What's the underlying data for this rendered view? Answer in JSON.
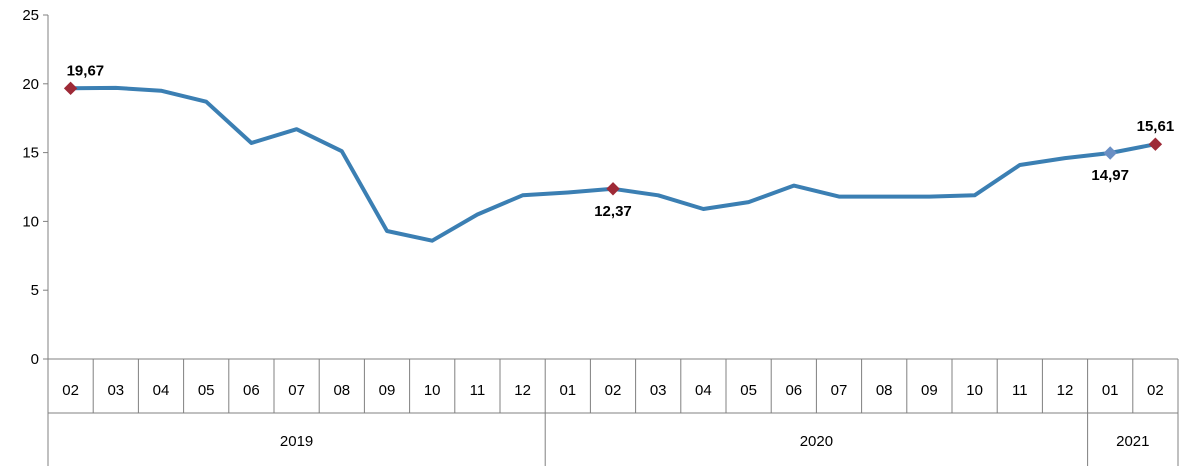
{
  "chart_data": {
    "type": "line",
    "title": "",
    "xlabel": "",
    "ylabel": "",
    "ylim": [
      0,
      25
    ],
    "yticks": [
      0,
      5,
      10,
      15,
      20,
      25
    ],
    "grid": false,
    "legend": "none",
    "categories": [
      "02",
      "03",
      "04",
      "05",
      "06",
      "07",
      "08",
      "09",
      "10",
      "11",
      "12",
      "01",
      "02",
      "03",
      "04",
      "05",
      "06",
      "07",
      "08",
      "09",
      "10",
      "11",
      "12",
      "01",
      "02"
    ],
    "year_groups": [
      {
        "label": "2019",
        "span": 11
      },
      {
        "label": "2020",
        "span": 12
      },
      {
        "label": "2021",
        "span": 2
      }
    ],
    "series": [
      {
        "values": [
          19.67,
          19.7,
          19.5,
          18.7,
          15.7,
          16.7,
          15.1,
          9.3,
          8.6,
          10.5,
          11.9,
          12.1,
          12.37,
          11.9,
          10.9,
          11.4,
          12.6,
          11.8,
          11.8,
          11.8,
          11.9,
          14.1,
          14.6,
          14.97,
          15.61
        ],
        "color": "#3b7fb3"
      }
    ],
    "annotations": [
      {
        "index": 0,
        "text": "19,67",
        "color": "#9e2a37"
      },
      {
        "index": 12,
        "text": "12,37",
        "color": "#9e2a37"
      },
      {
        "index": 23,
        "text": "14,97",
        "color": "#6a8fc4"
      },
      {
        "index": 24,
        "text": "15,61",
        "color": "#9e2a37"
      }
    ]
  }
}
